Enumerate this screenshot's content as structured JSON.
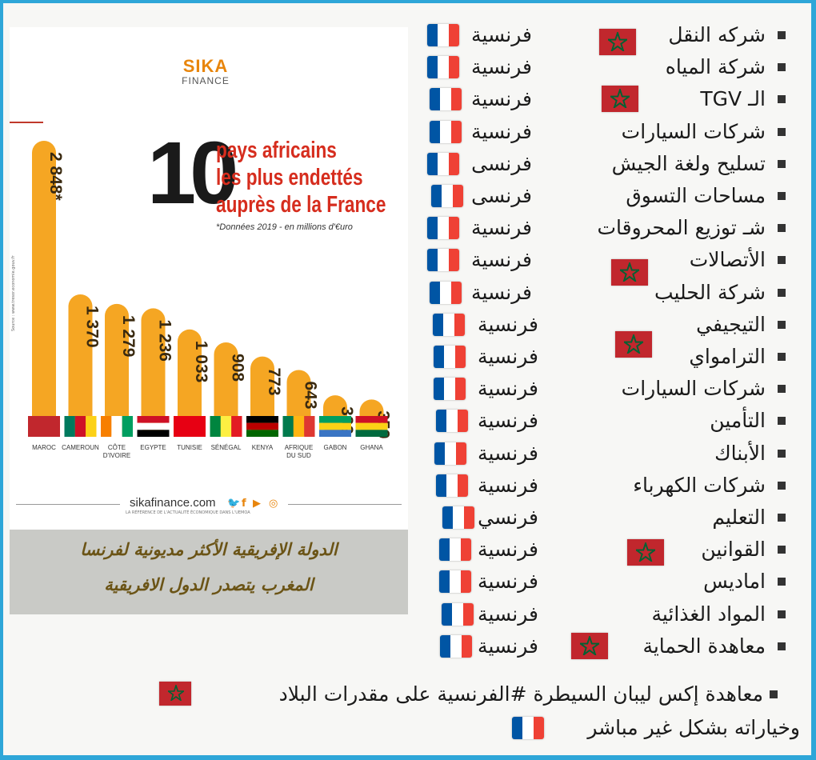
{
  "infographic": {
    "logo_top": "SIKA",
    "logo_bottom": "FINANCE",
    "big_number": "10",
    "title_lines": [
      "pays africains",
      "les plus endettés",
      "auprès de la France"
    ],
    "subtitle": "*Données 2019 - en millions d'€uro",
    "source_note": "Source : www.tresor.economie.gouv.fr",
    "footer_site": "sikafinance.com",
    "footer_tagline": "LA RÉFÉRENCE DE L'ACTUALITÉ ÉCONOMIQUE DANS L'UEMOA",
    "social_icons": [
      "twitter-icon",
      "facebook-icon",
      "youtube-icon",
      "instagram-icon"
    ],
    "accent_color": "#f5a623",
    "title_color": "#d62d1e"
  },
  "chart_data": {
    "type": "bar",
    "categories": [
      "MAROC",
      "CAMEROUN",
      "CÔTE D'IVOIRE",
      "EGYPTE",
      "TUNISIE",
      "SÉNÉGAL",
      "KENYA",
      "AFRIQUE DU SUD",
      "GABON",
      "GHANA"
    ],
    "values": [
      2848,
      1370,
      1279,
      1236,
      1033,
      908,
      773,
      643,
      399,
      359
    ],
    "value_labels": [
      "2 848*",
      "1 370",
      "1 279",
      "1 236",
      "1 033",
      "908",
      "773",
      "643",
      "399",
      "359"
    ],
    "title": "10 pays africains les plus endettés auprès de la France",
    "ylabel": "",
    "xlabel": "",
    "bar_color": "#f5a623"
  },
  "caption": {
    "line1": "الدولة الإفريقية الأكثر مديونية لفرنسا",
    "line2": "المغرب يتصدر الدول الافريقية"
  },
  "list": {
    "items": [
      {
        "label": "شركه النقل",
        "french": "فرنسية",
        "morocco_flag": true
      },
      {
        "label": "شركة المياه",
        "french": "فرنسية",
        "morocco_flag": false
      },
      {
        "label": "الـ TGV",
        "french": "فرنسية",
        "morocco_flag": true
      },
      {
        "label": "شركات السيارات",
        "french": "فرنسية",
        "morocco_flag": false
      },
      {
        "label": "تسليح ولغة الجيش",
        "french": "فرنسى",
        "morocco_flag": false
      },
      {
        "label": "مساحات التسوق",
        "french": "فرنسى",
        "morocco_flag": false
      },
      {
        "label": "شـ توزيع المحروقات",
        "french": "فرنسية",
        "morocco_flag": false
      },
      {
        "label": "الأتصالات",
        "french": "فرنسية",
        "morocco_flag": true
      },
      {
        "label": "شركة الحليب",
        "french": "فرنسية",
        "morocco_flag": false
      },
      {
        "label": "التيجيفي",
        "french": "فرنسية",
        "morocco_flag": true
      },
      {
        "label": "الترامواي",
        "french": "فرنسية",
        "morocco_flag": false
      },
      {
        "label": "شركات السيارات",
        "french": "فرنسية",
        "morocco_flag": false
      },
      {
        "label": "التأمين",
        "french": "فرنسية",
        "morocco_flag": false
      },
      {
        "label": "الأبناك",
        "french": "فرنسية",
        "morocco_flag": false
      },
      {
        "label": "شركات الكهرباء",
        "french": "فرنسية",
        "morocco_flag": false
      },
      {
        "label": "التعليم",
        "french": "فرنسي",
        "morocco_flag": false
      },
      {
        "label": "القوانين",
        "french": "فرنسية",
        "morocco_flag": true
      },
      {
        "label": "اماديس",
        "french": "فرنسية",
        "morocco_flag": false
      },
      {
        "label": "المواد الغذائية",
        "french": "فرنسية",
        "morocco_flag": false
      },
      {
        "label": "معاهدة الحماية",
        "french": "فرنسية",
        "morocco_flag": true
      }
    ],
    "footer_line1": "معاهدة إكس ليبان السيطرة #الفرنسية على مقدرات البلاد",
    "footer_line2": "وخياراته بشكل غير مباشر",
    "france_colors": [
      "#0055a4",
      "#ffffff",
      "#ef4135"
    ],
    "morocco_color": "#c1272d",
    "morocco_star_color": "#006233"
  }
}
